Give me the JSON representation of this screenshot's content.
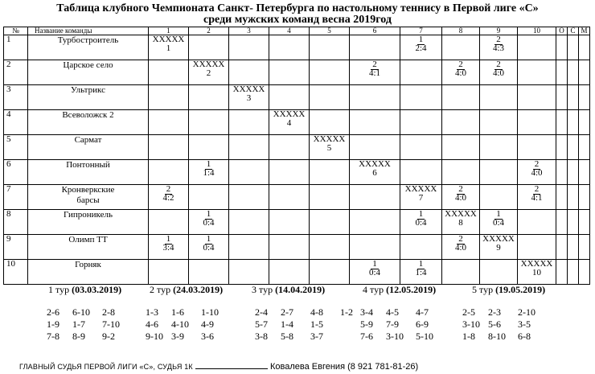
{
  "title_line1": "Таблица клубного Чемпионата Санкт- Петербурга по настольному теннису в Первой лиге «С»",
  "title_line2": "среди мужских команд  весна 2019год",
  "table": {
    "head": {
      "num": "№",
      "name": "Название команды",
      "cols": [
        "1",
        "2",
        "3",
        "4",
        "5",
        "6",
        "7",
        "8",
        "9",
        "10",
        "О",
        "С",
        "М"
      ]
    },
    "rows": [
      {
        "num": "1",
        "name": [
          "Турбостроитель"
        ],
        "diag": "1",
        "results": {
          "7": [
            "1",
            "2:4"
          ],
          "9": [
            "2",
            "4:3"
          ]
        }
      },
      {
        "num": "2",
        "name": [
          "Царское село"
        ],
        "diag": "2",
        "results": {
          "6": [
            "2",
            "4:1"
          ],
          "8": [
            "2",
            "4:0"
          ],
          "9": [
            "2",
            "4:0"
          ]
        }
      },
      {
        "num": "3",
        "name": [
          "Ультрикс"
        ],
        "diag": "3",
        "results": {}
      },
      {
        "num": "4",
        "name": [
          "Всеволожск 2"
        ],
        "diag": "4",
        "results": {}
      },
      {
        "num": "5",
        "name": [
          "Сармат"
        ],
        "diag": "5",
        "results": {}
      },
      {
        "num": "6",
        "name": [
          "Понтонный"
        ],
        "diag": "6",
        "results": {
          "2": [
            "1",
            "1:4"
          ],
          "10": [
            "2",
            "4:0"
          ]
        }
      },
      {
        "num": "7",
        "name": [
          "Кронверкские",
          "барсы"
        ],
        "diag": "7",
        "results": {
          "1": [
            "2",
            "4:2"
          ],
          "8": [
            "2",
            "4:0"
          ],
          "10": [
            "2",
            "4:1"
          ]
        }
      },
      {
        "num": "8",
        "name": [
          "Гипроникель"
        ],
        "diag": "8",
        "results": {
          "2": [
            "1",
            "0:4"
          ],
          "7": [
            "1",
            "0:4"
          ],
          "9": [
            "1",
            "0:4"
          ]
        }
      },
      {
        "num": "9",
        "name": [
          "Олимп ТТ"
        ],
        "diag": "9",
        "results": {
          "1": [
            "1",
            "3:4"
          ],
          "2": [
            "1",
            "0:4"
          ],
          "8": [
            "2",
            "4:0"
          ]
        }
      },
      {
        "num": "10",
        "name": [
          "Горняк"
        ],
        "diag": "10",
        "results": {
          "6": [
            "1",
            "0:4"
          ],
          "7": [
            "1",
            "1:4"
          ]
        }
      }
    ],
    "diag_mark": "XXXXX"
  },
  "tours": [
    {
      "label": "1 тур",
      "date": "(03.03.2019)",
      "games": [
        [
          "2-6",
          "6-10",
          "2-8"
        ],
        [
          "1-9",
          "1-7",
          "7-10"
        ],
        [
          "7-8",
          "8-9",
          "9-2"
        ]
      ]
    },
    {
      "label": "2 тур",
      "date": "(24.03.2019)",
      "games": [
        [
          "1-3",
          "1-6",
          "1-10"
        ],
        [
          "4-6",
          "4-10",
          "4-9"
        ],
        [
          "9-10",
          "3-9",
          "3-6"
        ]
      ]
    },
    {
      "label": "3 тур",
      "date": "(14.04.2019)",
      "games": [
        [
          "2-4",
          "2-7",
          "4-8",
          "1-2"
        ],
        [
          "5-7",
          "1-4",
          "1-5"
        ],
        [
          "3-8",
          "5-8",
          "3-7"
        ]
      ]
    },
    {
      "label": "4 тур",
      "date": "(12.05.2019)",
      "games": [
        [
          "3-4",
          "4-5",
          "4-7"
        ],
        [
          "5-9",
          "7-9",
          "6-9"
        ],
        [
          "7-6",
          "3-10",
          "5-10"
        ]
      ]
    },
    {
      "label": "5 тур",
      "date": "(19.05.2019)",
      "games": [
        [
          "2-5",
          "2-3",
          "2-10"
        ],
        [
          "3-10",
          "5-6",
          "3-5"
        ],
        [
          "1-8",
          "8-10",
          "6-8"
        ]
      ]
    }
  ],
  "judge": {
    "caps": "ГЛАВНЫЙ СУДЬЯ ПЕРВОЙ  ЛИГИ «С», СУДЬЯ  1К",
    "name": "Ковалева Евгения (8 921 781-81-26)"
  }
}
